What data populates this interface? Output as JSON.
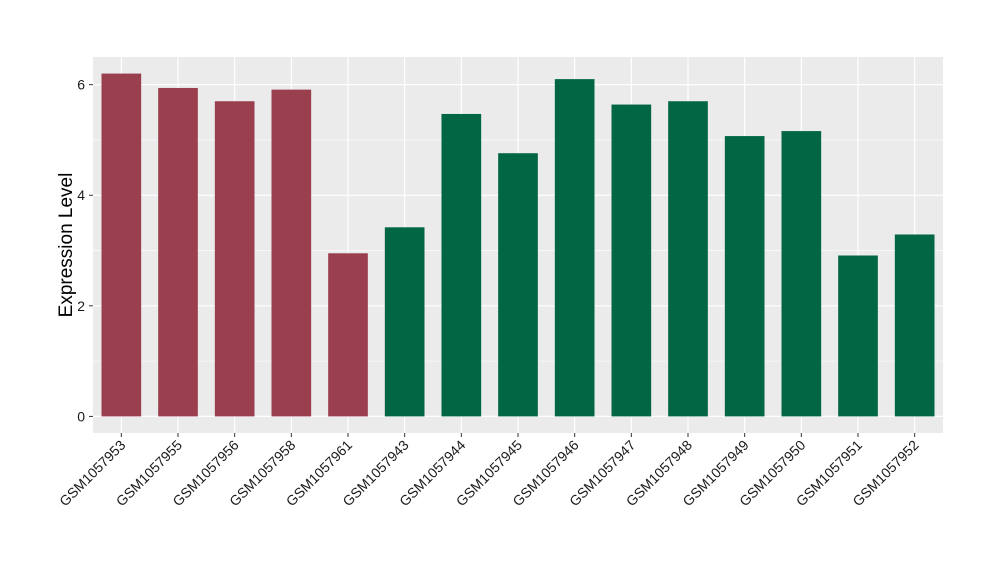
{
  "chart_data": {
    "type": "bar",
    "title": "",
    "xlabel": "",
    "ylabel": "Expression Level",
    "ylim": [
      -0.3,
      6.5
    ],
    "yticks": [
      0,
      2,
      4,
      6
    ],
    "grid": true,
    "legend": "none",
    "categories": [
      "GSM1057953",
      "GSM1057955",
      "GSM1057956",
      "GSM1057958",
      "GSM1057961",
      "GSM1057943",
      "GSM1057944",
      "GSM1057945",
      "GSM1057946",
      "GSM1057947",
      "GSM1057948",
      "GSM1057949",
      "GSM1057950",
      "GSM1057951",
      "GSM1057952"
    ],
    "values": [
      6.2,
      5.94,
      5.7,
      5.91,
      2.95,
      3.42,
      5.47,
      4.76,
      6.1,
      5.64,
      5.7,
      5.07,
      5.16,
      2.91,
      3.29
    ],
    "groups": [
      "a",
      "a",
      "a",
      "a",
      "a",
      "b",
      "b",
      "b",
      "b",
      "b",
      "b",
      "b",
      "b",
      "b",
      "b"
    ],
    "colors": {
      "a": "#9a3f4e",
      "b": "#006644"
    },
    "panel_background": "#ebebeb",
    "grid_color": "#ffffff"
  }
}
